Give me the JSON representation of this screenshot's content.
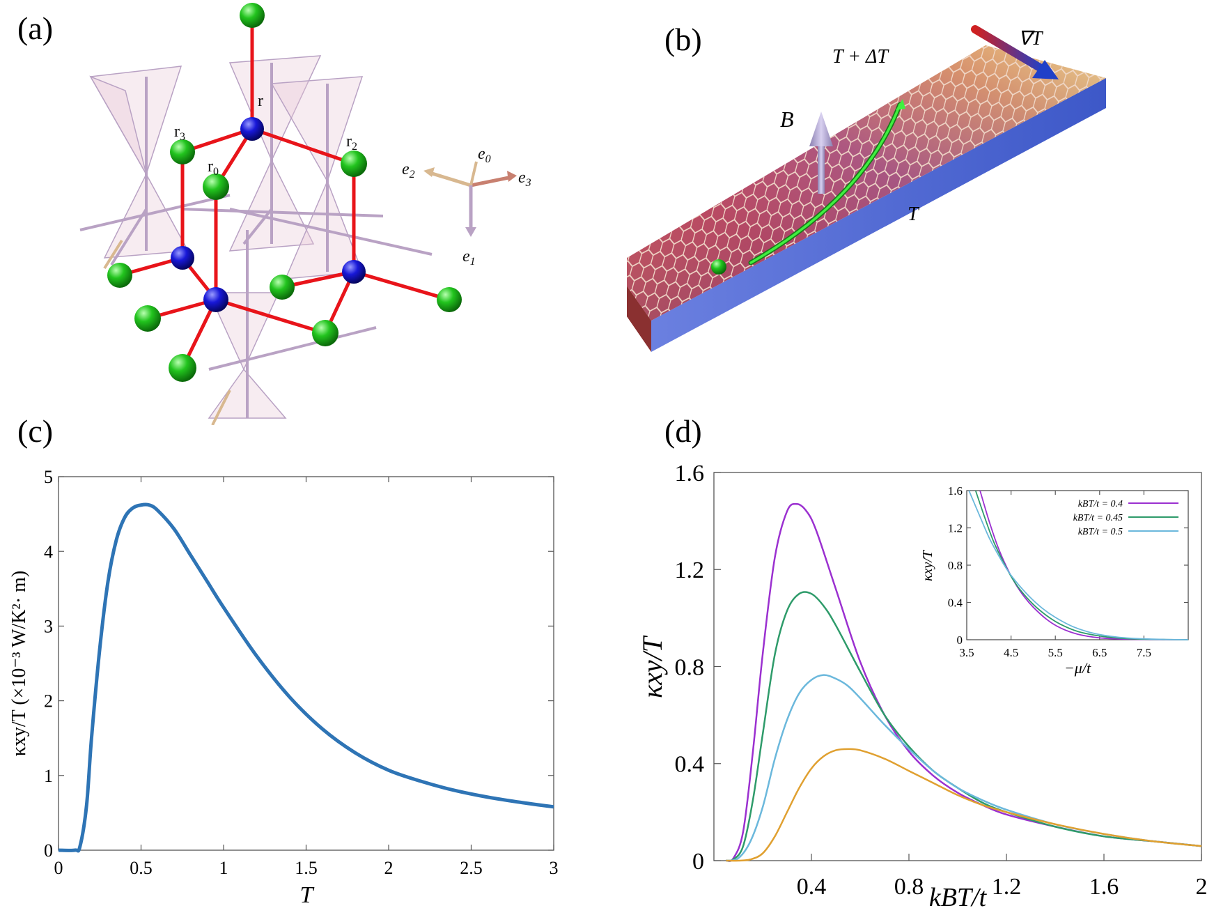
{
  "panel_labels": {
    "a": "(a)",
    "b": "(b)",
    "c": "(c)",
    "d": "(d)"
  },
  "panel_a": {
    "site_labels": {
      "r": "r",
      "r0": "r0",
      "r2": "r2",
      "r3": "r3"
    },
    "axis_labels": {
      "e0": "e0",
      "e1": "e1",
      "e2": "e2",
      "e3": "e3"
    },
    "colors": {
      "bond": "#e8141a",
      "blue_site": "#1818d8",
      "green_site": "#22c41e",
      "tetra": "#c9a6c8"
    }
  },
  "panel_b": {
    "labels": {
      "B": "B",
      "T_plus": "T + ΔT",
      "T": "T",
      "gradT": "∇T"
    },
    "colors": {
      "hot": "#d43a2e",
      "cold": "#3d58c8",
      "trajectory": "#30e030",
      "particle": "#22c41e"
    }
  },
  "chart_data": [
    {
      "id": "c",
      "type": "line",
      "title": "",
      "xlabel": "T",
      "ylabel": "κxy/T (×10⁻³ W/K²· m)",
      "xlim": [
        0,
        3
      ],
      "ylim": [
        0,
        5
      ],
      "xticks": [
        "0",
        "0.5",
        "1",
        "1.5",
        "2",
        "2.5",
        "3"
      ],
      "yticks": [
        "0",
        "1",
        "2",
        "3",
        "4",
        "5"
      ],
      "series": [
        {
          "name": "κxy/T",
          "color": "#2e74b5",
          "x": [
            0,
            0.1,
            0.13,
            0.17,
            0.2,
            0.25,
            0.3,
            0.35,
            0.4,
            0.45,
            0.5,
            0.55,
            0.6,
            0.7,
            0.8,
            0.9,
            1.0,
            1.2,
            1.4,
            1.6,
            1.8,
            2.0,
            2.2,
            2.4,
            2.6,
            2.8,
            3.0
          ],
          "y": [
            0,
            0,
            0.05,
            0.6,
            1.5,
            2.7,
            3.6,
            4.15,
            4.45,
            4.58,
            4.62,
            4.62,
            4.55,
            4.3,
            3.95,
            3.6,
            3.25,
            2.6,
            2.05,
            1.62,
            1.3,
            1.07,
            0.92,
            0.8,
            0.71,
            0.64,
            0.58
          ]
        }
      ]
    },
    {
      "id": "d",
      "type": "line",
      "title": "",
      "xlabel": "kBT/t",
      "ylabel": "κxy/T",
      "xlim": [
        0,
        2
      ],
      "ylim": [
        0,
        1.6
      ],
      "xticks": [
        "0.4",
        "0.8",
        "1.2",
        "1.6",
        "2"
      ],
      "yticks": [
        "0",
        "0.4",
        "0.8",
        "1.2",
        "1.6"
      ],
      "series": [
        {
          "name": "purple",
          "color": "#9b30d0",
          "x": [
            0.05,
            0.08,
            0.12,
            0.16,
            0.2,
            0.25,
            0.3,
            0.34,
            0.38,
            0.42,
            0.5,
            0.6,
            0.7,
            0.8,
            0.9,
            1.0,
            1.1,
            1.2,
            1.4,
            1.6,
            1.8,
            2.0
          ],
          "y": [
            0,
            0.01,
            0.12,
            0.45,
            0.85,
            1.25,
            1.44,
            1.47,
            1.44,
            1.36,
            1.12,
            0.82,
            0.6,
            0.45,
            0.35,
            0.28,
            0.23,
            0.19,
            0.14,
            0.1,
            0.08,
            0.06
          ]
        },
        {
          "name": "green",
          "color": "#2e9b6a",
          "x": [
            0.05,
            0.08,
            0.12,
            0.16,
            0.2,
            0.25,
            0.3,
            0.35,
            0.4,
            0.45,
            0.5,
            0.6,
            0.7,
            0.8,
            0.9,
            1.0,
            1.1,
            1.2,
            1.4,
            1.6,
            1.8,
            2.0
          ],
          "y": [
            0,
            0.005,
            0.06,
            0.25,
            0.52,
            0.85,
            1.03,
            1.1,
            1.1,
            1.05,
            0.97,
            0.78,
            0.6,
            0.47,
            0.37,
            0.3,
            0.24,
            0.2,
            0.14,
            0.1,
            0.08,
            0.06
          ]
        },
        {
          "name": "lightblue",
          "color": "#6bb8dc",
          "x": [
            0.05,
            0.1,
            0.15,
            0.2,
            0.25,
            0.3,
            0.35,
            0.4,
            0.45,
            0.5,
            0.55,
            0.6,
            0.7,
            0.8,
            0.9,
            1.0,
            1.1,
            1.2,
            1.4,
            1.6,
            1.8,
            2.0
          ],
          "y": [
            0,
            0.01,
            0.08,
            0.22,
            0.42,
            0.58,
            0.69,
            0.745,
            0.765,
            0.75,
            0.72,
            0.67,
            0.56,
            0.46,
            0.37,
            0.3,
            0.25,
            0.21,
            0.15,
            0.11,
            0.08,
            0.06
          ]
        },
        {
          "name": "orange",
          "color": "#e0a030",
          "x": [
            0.05,
            0.1,
            0.15,
            0.2,
            0.25,
            0.3,
            0.35,
            0.4,
            0.45,
            0.5,
            0.55,
            0.6,
            0.7,
            0.8,
            0.9,
            1.0,
            1.1,
            1.2,
            1.4,
            1.6,
            1.8,
            2.0
          ],
          "y": [
            0,
            0,
            0.005,
            0.03,
            0.1,
            0.2,
            0.3,
            0.38,
            0.43,
            0.455,
            0.46,
            0.455,
            0.42,
            0.37,
            0.32,
            0.27,
            0.23,
            0.2,
            0.15,
            0.11,
            0.08,
            0.06
          ]
        }
      ],
      "inset": {
        "type": "line",
        "xlabel": "−μ/t",
        "ylabel": "κxy/T",
        "xlim": [
          3.5,
          8.5
        ],
        "ylim": [
          0,
          1.6
        ],
        "xticks": [
          "3.5",
          "4.5",
          "5.5",
          "6.5",
          "7.5"
        ],
        "yticks": [
          "0",
          "0.4",
          "0.8",
          "1.2",
          "1.6"
        ],
        "legend": [
          "kBT/t = 0.4",
          "kBT/t = 0.45",
          "kBT/t = 0.5"
        ],
        "series": [
          {
            "name": "kBT/t = 0.4",
            "color": "#9b30d0",
            "x": [
              3.8,
              4.0,
              4.2,
              4.4,
              4.6,
              4.8,
              5.0,
              5.3,
              5.6,
              6.0,
              6.5,
              7.0,
              7.5,
              8.0,
              8.5
            ],
            "y": [
              1.6,
              1.28,
              1.0,
              0.78,
              0.6,
              0.46,
              0.35,
              0.22,
              0.13,
              0.06,
              0.02,
              0.008,
              0.003,
              0.001,
              0
            ]
          },
          {
            "name": "kBT/t = 0.45",
            "color": "#2e9b6a",
            "x": [
              3.7,
              3.9,
              4.1,
              4.3,
              4.5,
              4.7,
              5.0,
              5.3,
              5.6,
              6.0,
              6.5,
              7.0,
              7.5,
              8.0,
              8.5
            ],
            "y": [
              1.6,
              1.32,
              1.06,
              0.86,
              0.68,
              0.54,
              0.38,
              0.26,
              0.17,
              0.09,
              0.04,
              0.015,
              0.006,
              0.002,
              0
            ]
          },
          {
            "name": "kBT/t = 0.5",
            "color": "#6bb8dc",
            "x": [
              3.55,
              3.8,
              4.0,
              4.2,
              4.4,
              4.6,
              4.9,
              5.2,
              5.5,
              5.9,
              6.4,
              6.9,
              7.4,
              8.0,
              8.5
            ],
            "y": [
              1.6,
              1.32,
              1.1,
              0.92,
              0.76,
              0.63,
              0.47,
              0.34,
              0.24,
              0.14,
              0.065,
              0.028,
              0.011,
              0.003,
              0
            ]
          }
        ]
      }
    }
  ]
}
